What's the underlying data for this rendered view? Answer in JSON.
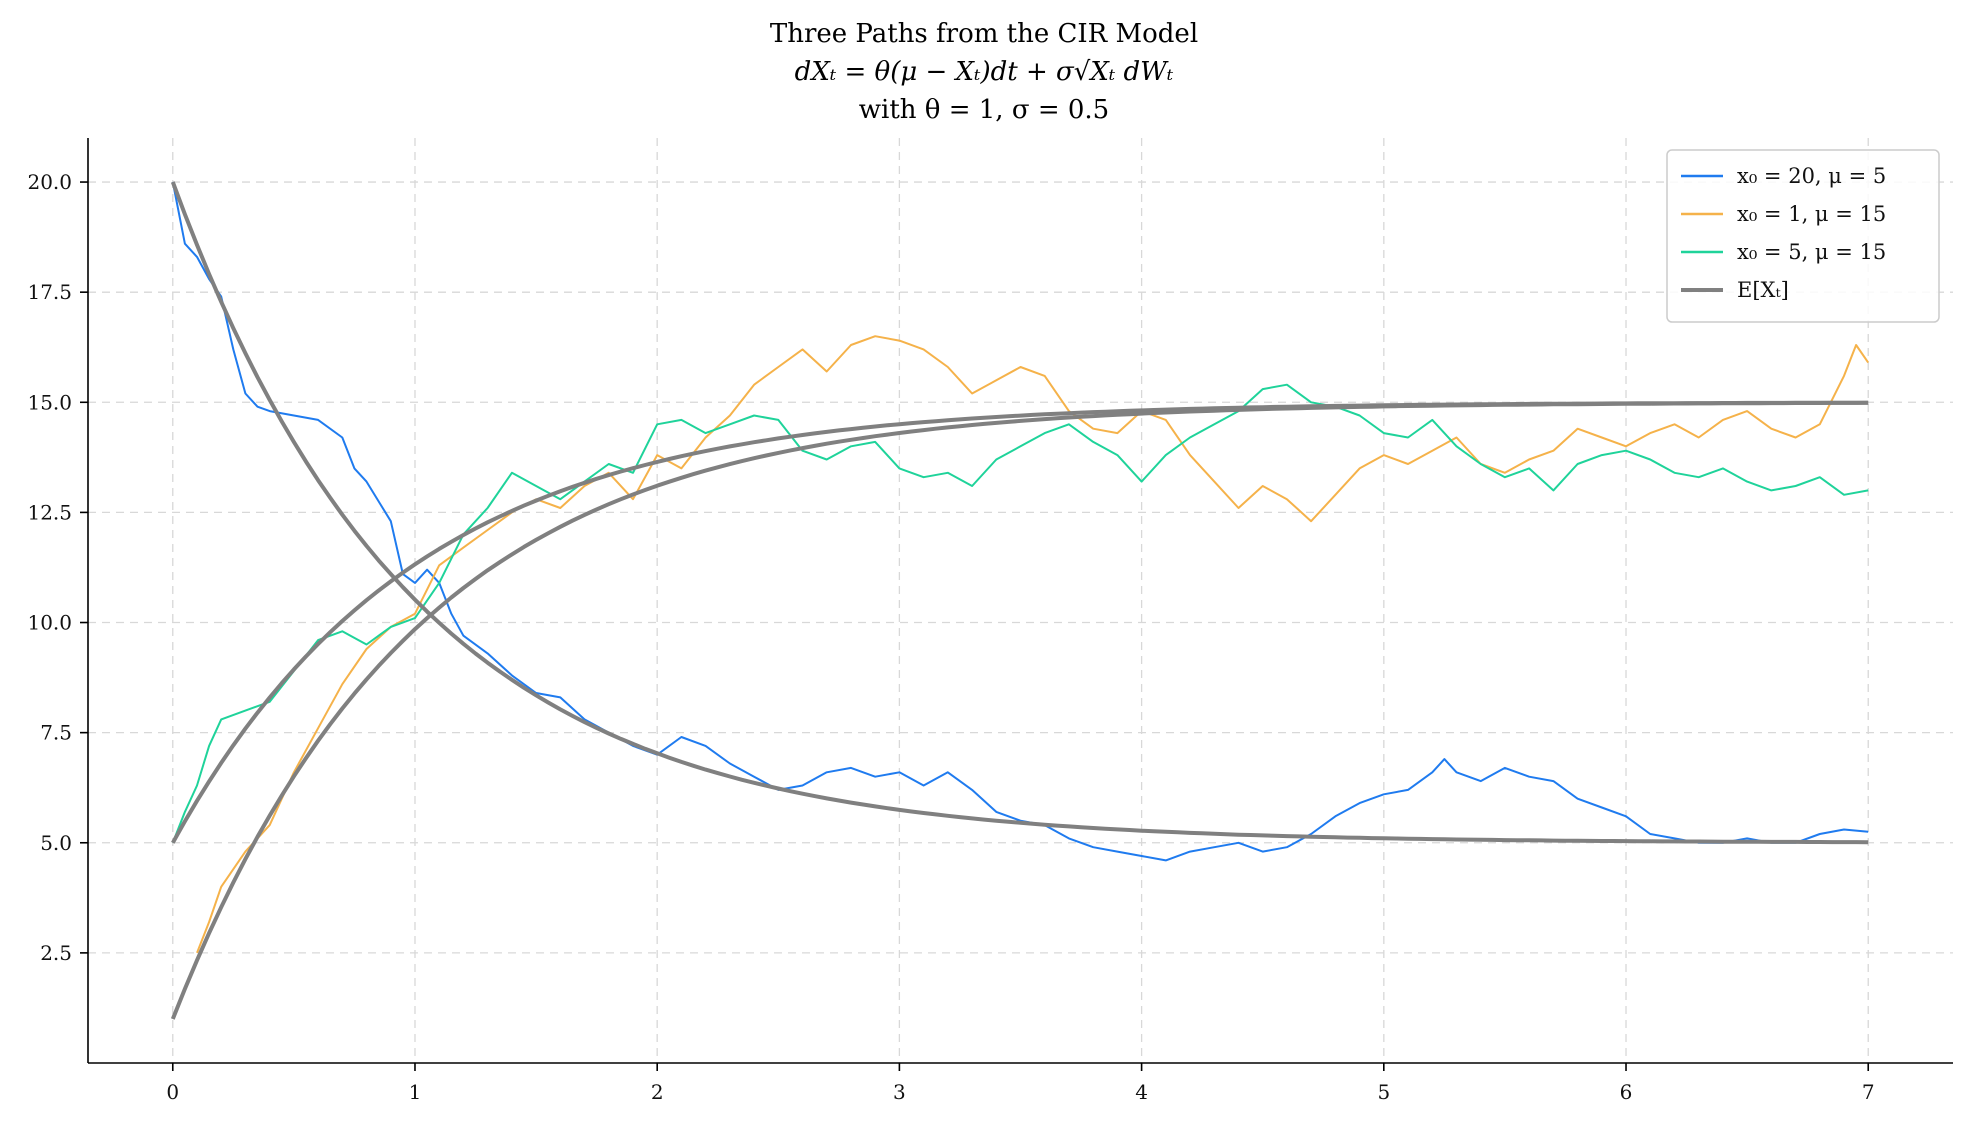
{
  "chart_data": {
    "type": "line",
    "title": "Three Paths from the CIR Model",
    "subtitle_lines": [
      "dXₜ = θ(μ − Xₜ)dt + σ√Xₜ dWₜ",
      "with θ = 1, σ = 0.5"
    ],
    "xlabel": "",
    "ylabel": "",
    "xlim": [
      -0.35,
      7.35
    ],
    "ylim": [
      0.0,
      21.0
    ],
    "x_ticks": [
      0,
      1,
      2,
      3,
      4,
      5,
      6,
      7
    ],
    "y_ticks": [
      2.5,
      5.0,
      7.5,
      10.0,
      12.5,
      15.0,
      17.5,
      20.0
    ],
    "grid": true,
    "legend_position": "top-right",
    "series": [
      {
        "name": "x₀ = 20, μ = 5",
        "color": "#1f7bef",
        "x": [
          0,
          0.05,
          0.1,
          0.15,
          0.2,
          0.25,
          0.3,
          0.35,
          0.4,
          0.5,
          0.6,
          0.7,
          0.75,
          0.8,
          0.9,
          0.95,
          1.0,
          1.05,
          1.1,
          1.15,
          1.2,
          1.3,
          1.4,
          1.5,
          1.6,
          1.7,
          1.8,
          1.9,
          2.0,
          2.1,
          2.2,
          2.3,
          2.4,
          2.5,
          2.6,
          2.7,
          2.8,
          2.9,
          3.0,
          3.1,
          3.2,
          3.3,
          3.4,
          3.5,
          3.6,
          3.7,
          3.8,
          3.9,
          4.0,
          4.1,
          4.2,
          4.3,
          4.4,
          4.5,
          4.6,
          4.7,
          4.8,
          4.9,
          5.0,
          5.1,
          5.2,
          5.25,
          5.3,
          5.4,
          5.5,
          5.6,
          5.7,
          5.8,
          5.9,
          6.0,
          6.1,
          6.2,
          6.3,
          6.4,
          6.5,
          6.6,
          6.7,
          6.8,
          6.9,
          7.0
        ],
        "y": [
          20.0,
          18.6,
          18.3,
          17.8,
          17.4,
          16.2,
          15.2,
          14.9,
          14.8,
          14.7,
          14.6,
          14.2,
          13.5,
          13.2,
          12.3,
          11.1,
          10.9,
          11.2,
          10.9,
          10.2,
          9.7,
          9.3,
          8.8,
          8.4,
          8.3,
          7.8,
          7.5,
          7.2,
          7.0,
          7.4,
          7.2,
          6.8,
          6.5,
          6.2,
          6.3,
          6.6,
          6.7,
          6.5,
          6.6,
          6.3,
          6.6,
          6.2,
          5.7,
          5.5,
          5.4,
          5.1,
          4.9,
          4.8,
          4.7,
          4.6,
          4.8,
          4.9,
          5.0,
          4.8,
          4.9,
          5.2,
          5.6,
          5.9,
          6.1,
          6.2,
          6.6,
          6.9,
          6.6,
          6.4,
          6.7,
          6.5,
          6.4,
          6.0,
          5.8,
          5.6,
          5.2,
          5.1,
          5.0,
          5.0,
          5.1,
          5.0,
          5.0,
          5.2,
          5.3,
          5.25
        ]
      },
      {
        "name": "x₀ = 1, μ = 15",
        "color": "#f5b24a",
        "x": [
          0.1,
          0.15,
          0.2,
          0.3,
          0.4,
          0.5,
          0.6,
          0.7,
          0.8,
          0.9,
          1.0,
          1.1,
          1.2,
          1.3,
          1.4,
          1.5,
          1.6,
          1.7,
          1.8,
          1.9,
          2.0,
          2.1,
          2.2,
          2.3,
          2.4,
          2.5,
          2.6,
          2.7,
          2.8,
          2.9,
          3.0,
          3.1,
          3.2,
          3.3,
          3.4,
          3.5,
          3.6,
          3.7,
          3.8,
          3.9,
          4.0,
          4.1,
          4.2,
          4.3,
          4.4,
          4.5,
          4.6,
          4.7,
          4.8,
          4.9,
          5.0,
          5.1,
          5.2,
          5.3,
          5.4,
          5.5,
          5.6,
          5.7,
          5.8,
          5.9,
          6.0,
          6.1,
          6.2,
          6.3,
          6.4,
          6.5,
          6.6,
          6.7,
          6.8,
          6.9,
          6.95,
          7.0
        ],
        "y": [
          2.5,
          3.2,
          4.0,
          4.8,
          5.4,
          6.6,
          7.6,
          8.6,
          9.4,
          9.9,
          10.2,
          11.3,
          11.7,
          12.1,
          12.5,
          12.8,
          12.6,
          13.1,
          13.4,
          12.8,
          13.8,
          13.5,
          14.2,
          14.7,
          15.4,
          15.8,
          16.2,
          15.7,
          16.3,
          16.5,
          16.4,
          16.2,
          15.8,
          15.2,
          15.5,
          15.8,
          15.6,
          14.8,
          14.4,
          14.3,
          14.8,
          14.6,
          13.8,
          13.2,
          12.6,
          13.1,
          12.8,
          12.3,
          12.9,
          13.5,
          13.8,
          13.6,
          13.9,
          14.2,
          13.6,
          13.4,
          13.7,
          13.9,
          14.4,
          14.2,
          14.0,
          14.3,
          14.5,
          14.2,
          14.6,
          14.8,
          14.4,
          14.2,
          14.5,
          15.6,
          16.3,
          15.9
        ]
      },
      {
        "name": "x₀ = 5, μ = 15",
        "color": "#1fd39a",
        "x": [
          0,
          0.05,
          0.1,
          0.15,
          0.2,
          0.3,
          0.4,
          0.5,
          0.6,
          0.7,
          0.8,
          0.9,
          1.0,
          1.1,
          1.2,
          1.3,
          1.4,
          1.5,
          1.6,
          1.7,
          1.8,
          1.9,
          2.0,
          2.1,
          2.2,
          2.3,
          2.4,
          2.5,
          2.6,
          2.7,
          2.8,
          2.9,
          3.0,
          3.1,
          3.2,
          3.3,
          3.4,
          3.5,
          3.6,
          3.7,
          3.8,
          3.9,
          4.0,
          4.1,
          4.2,
          4.3,
          4.4,
          4.5,
          4.6,
          4.7,
          4.8,
          4.9,
          5.0,
          5.1,
          5.2,
          5.3,
          5.4,
          5.5,
          5.6,
          5.7,
          5.8,
          5.9,
          6.0,
          6.1,
          6.2,
          6.3,
          6.4,
          6.5,
          6.6,
          6.7,
          6.8,
          6.9,
          7.0
        ],
        "y": [
          5.0,
          5.7,
          6.3,
          7.2,
          7.8,
          8.0,
          8.2,
          8.9,
          9.6,
          9.8,
          9.5,
          9.9,
          10.1,
          10.9,
          12.0,
          12.6,
          13.4,
          13.1,
          12.8,
          13.2,
          13.6,
          13.4,
          14.5,
          14.6,
          14.3,
          14.5,
          14.7,
          14.6,
          13.9,
          13.7,
          14.0,
          14.1,
          13.5,
          13.3,
          13.4,
          13.1,
          13.7,
          14.0,
          14.3,
          14.5,
          14.1,
          13.8,
          13.2,
          13.8,
          14.2,
          14.5,
          14.8,
          15.3,
          15.4,
          15.0,
          14.9,
          14.7,
          14.3,
          14.2,
          14.6,
          14.0,
          13.6,
          13.3,
          13.5,
          13.0,
          13.6,
          13.8,
          13.9,
          13.7,
          13.4,
          13.3,
          13.5,
          13.2,
          13.0,
          13.1,
          13.3,
          12.9,
          13.0
        ]
      },
      {
        "name": "E[Xₜ]",
        "color": "#808080",
        "kind": "expected",
        "curves": [
          {
            "x0": 20,
            "mu": 5,
            "theta": 1
          },
          {
            "x0": 1,
            "mu": 15,
            "theta": 1
          },
          {
            "x0": 5,
            "mu": 15,
            "theta": 1
          }
        ]
      }
    ]
  }
}
